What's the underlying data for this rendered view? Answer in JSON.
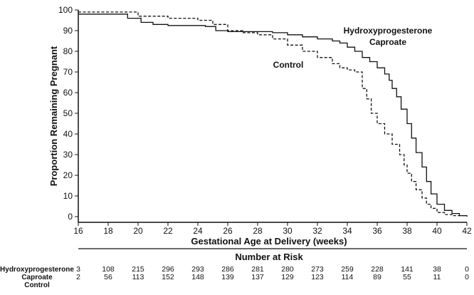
{
  "chart_data": {
    "type": "line",
    "title": "",
    "xlabel": "Gestational Age at Delivery (weeks)",
    "ylabel": "Proportion Remaining Pregnant",
    "xlim": [
      16,
      42
    ],
    "ylim": [
      0,
      100
    ],
    "x_ticks": [
      16,
      18,
      20,
      22,
      24,
      26,
      28,
      30,
      32,
      34,
      36,
      38,
      40,
      42
    ],
    "y_ticks": [
      0,
      10,
      20,
      30,
      40,
      50,
      60,
      70,
      80,
      90,
      100
    ],
    "series": [
      {
        "name": "Hydroxyprogesterone Caproate",
        "style": "solid",
        "x": [
          16,
          18.6,
          19.3,
          20.2,
          21.0,
          22.0,
          24.5,
          25.2,
          26.0,
          28.0,
          29.0,
          30.0,
          31.0,
          32.0,
          33.0,
          33.5,
          34.0,
          34.5,
          35.0,
          35.5,
          36.0,
          36.5,
          36.8,
          37.0,
          37.3,
          37.6,
          38.0,
          38.3,
          38.6,
          39.0,
          39.3,
          39.6,
          40.0,
          40.5,
          41.0,
          41.5,
          42.0
        ],
        "values": [
          98,
          98,
          96,
          94,
          93,
          92.5,
          92,
          90,
          89.5,
          89.5,
          89,
          88,
          87,
          86,
          85,
          84,
          82,
          80,
          77,
          75,
          72,
          69,
          66,
          62,
          58,
          52,
          45,
          38,
          31,
          24,
          17,
          11,
          6,
          3,
          1.5,
          0.5,
          0
        ]
      },
      {
        "name": "Control",
        "style": "dashed",
        "x": [
          16,
          19.0,
          20.0,
          22.0,
          24.0,
          25.0,
          26.0,
          27.0,
          28.0,
          29.0,
          30.0,
          31.0,
          32.0,
          33.0,
          33.5,
          34.0,
          34.5,
          35.0,
          35.3,
          35.6,
          36.0,
          36.5,
          37.0,
          37.5,
          37.8,
          38.0,
          38.3,
          38.6,
          39.0,
          39.3,
          39.6,
          40.0,
          40.5,
          41.0,
          42.0
        ],
        "values": [
          99,
          99,
          97,
          96,
          95,
          93,
          90,
          89,
          88,
          86,
          83,
          80,
          77,
          74,
          72,
          71,
          70,
          62,
          57,
          50,
          45,
          40,
          35,
          30,
          25,
          21,
          17,
          13,
          9,
          6,
          4,
          2,
          1,
          0.5,
          0
        ]
      }
    ],
    "annotations": [
      {
        "text_lines": [
          "Hydroxyprogesterone",
          "Caproate"
        ],
        "series": "Hydroxyprogesterone Caproate"
      },
      {
        "text_lines": [
          "Control"
        ],
        "series": "Control"
      }
    ]
  },
  "risk_table": {
    "title": "Number at Risk",
    "rows": [
      {
        "label": "Hydroxyprogesterone",
        "values": [
          "3",
          "108",
          "215",
          "296",
          "293",
          "286",
          "281",
          "280",
          "273",
          "259",
          "228",
          "141",
          "38",
          "0"
        ]
      },
      {
        "label": "Caproate",
        "values": [
          "2",
          "56",
          "113",
          "152",
          "148",
          "139",
          "137",
          "129",
          "123",
          "114",
          "89",
          "55",
          "11",
          "0"
        ]
      },
      {
        "label": "Control",
        "values": []
      }
    ]
  }
}
